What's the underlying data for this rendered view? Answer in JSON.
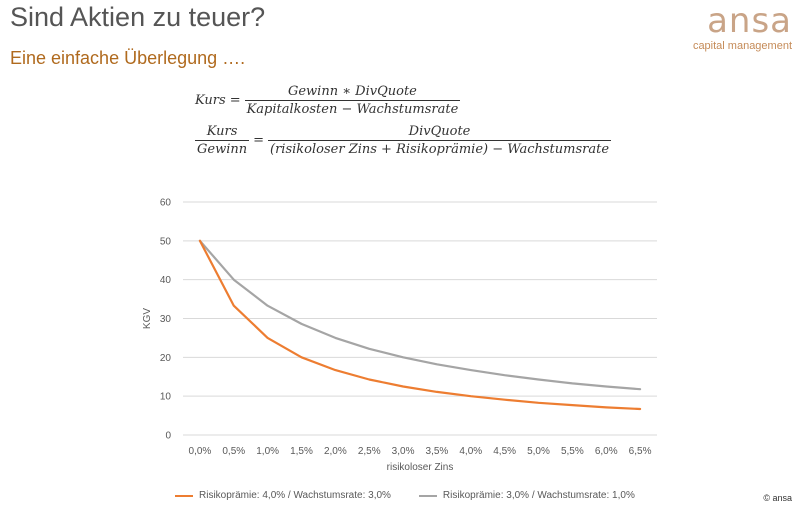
{
  "slide": {
    "title": "Sind Aktien zu teuer?",
    "subtitle": "Eine einfache Überlegung ….",
    "logo": {
      "word": "ansa",
      "sub": "capital management"
    },
    "copyright": "© ansa"
  },
  "formulas": {
    "f1": {
      "lhs": "Kurs",
      "eq": "=",
      "num": "Gewinn  ∗ DivQuote",
      "den": "Kapitalkosten − Wachstumsrate"
    },
    "f2": {
      "lhs_num": "Kurs",
      "lhs_den": "Gewinn",
      "eq": "=",
      "num": "DivQuote",
      "den": "(risikoloser Zins + Risikoprämie) − Wachstumsrate"
    }
  },
  "colors": {
    "series1": "#ed7d31",
    "series2": "#a5a5a5",
    "grid": "#d9d9d9",
    "title": "#555555",
    "subtitle": "#b06a1e"
  },
  "chart_data": {
    "type": "line",
    "xlabel": "risikoloser Zins",
    "ylabel": "KGV",
    "ylim": [
      0,
      60
    ],
    "yticks": [
      0,
      10,
      20,
      30,
      40,
      50,
      60
    ],
    "grid": true,
    "legend_position": "bottom",
    "categories": [
      "0,0%",
      "0,5%",
      "1,0%",
      "1,5%",
      "2,0%",
      "2,5%",
      "3,0%",
      "3,5%",
      "4,0%",
      "4,5%",
      "5,0%",
      "5,5%",
      "6,0%",
      "6,5%"
    ],
    "series": [
      {
        "name": "Risikoprämie: 4,0% / Wachstumsrate: 3,0%",
        "color": "#ed7d31",
        "values": [
          50,
          33.3,
          25,
          20,
          16.7,
          14.3,
          12.5,
          11.1,
          10,
          9.1,
          8.3,
          7.7,
          7.1,
          6.7
        ]
      },
      {
        "name": "Risikoprämie: 3,0% / Wachstumsrate: 1,0%",
        "color": "#a5a5a5",
        "values": [
          50,
          40,
          33.3,
          28.6,
          25,
          22.2,
          20,
          18.2,
          16.7,
          15.4,
          14.3,
          13.3,
          12.5,
          11.8
        ]
      }
    ]
  }
}
